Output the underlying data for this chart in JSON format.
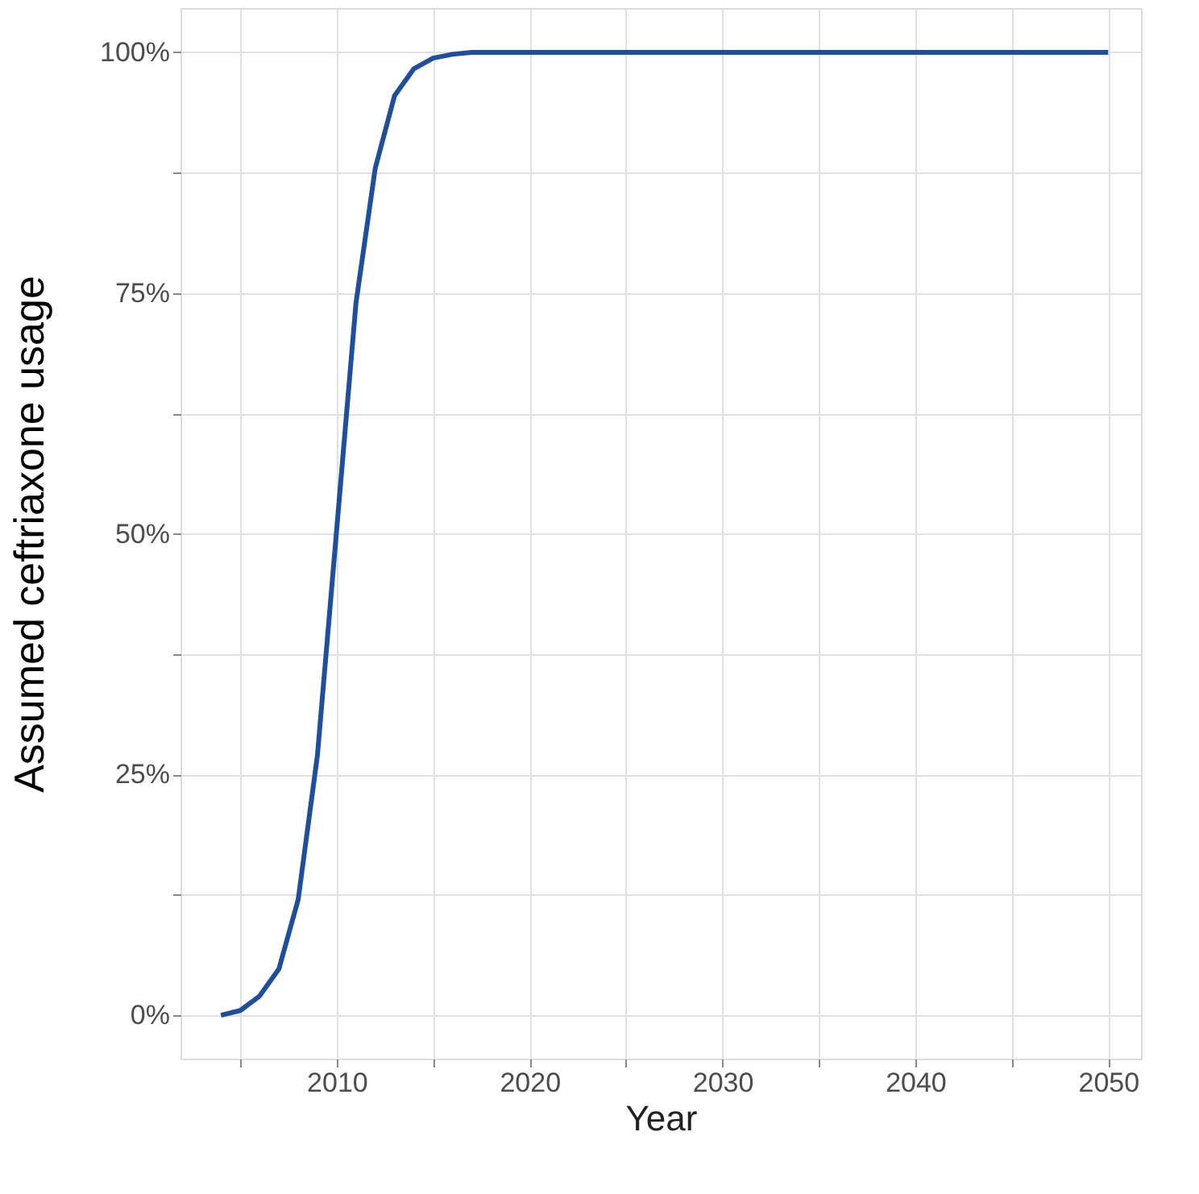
{
  "chart_data": {
    "type": "line",
    "xlabel": "Year",
    "ylabel": "Assumed ceftriaxone usage",
    "x": [
      2004,
      2005,
      2006,
      2007,
      2008,
      2009,
      2010,
      2011,
      2012,
      2013,
      2014,
      2015,
      2016,
      2017,
      2020,
      2030,
      2040,
      2050
    ],
    "series": [
      {
        "color": "#1f4e9c",
        "values": [
          0,
          0.5,
          2,
          4.8,
          12,
          27,
          50.5,
          74,
          88,
          95.5,
          98.3,
          99.4,
          99.8,
          100,
          100,
          100,
          100,
          100
        ]
      }
    ],
    "xlim": [
      2001.9,
      2051.7
    ],
    "ylim": [
      -4.5,
      104.6
    ],
    "xticks": [
      {
        "value": 2005,
        "label": null
      },
      2010,
      {
        "value": 2015,
        "label": null
      },
      2020,
      {
        "value": 2025,
        "label": null
      },
      2030,
      {
        "value": 2035,
        "label": null
      },
      2040,
      {
        "value": 2045,
        "label": null
      },
      2050
    ],
    "yticks": [
      {
        "value": 0,
        "label": "0%"
      },
      {
        "value": 12.5,
        "label": null
      },
      {
        "value": 25,
        "label": "25%"
      },
      {
        "value": 37.5,
        "label": null
      },
      {
        "value": 50,
        "label": "50%"
      },
      {
        "value": 62.5,
        "label": null
      },
      {
        "value": 75,
        "label": "75%"
      },
      {
        "value": 87.5,
        "label": null
      },
      {
        "value": 100,
        "label": "100%"
      }
    ],
    "grid": true,
    "marker": "none",
    "line_style": "solid"
  }
}
